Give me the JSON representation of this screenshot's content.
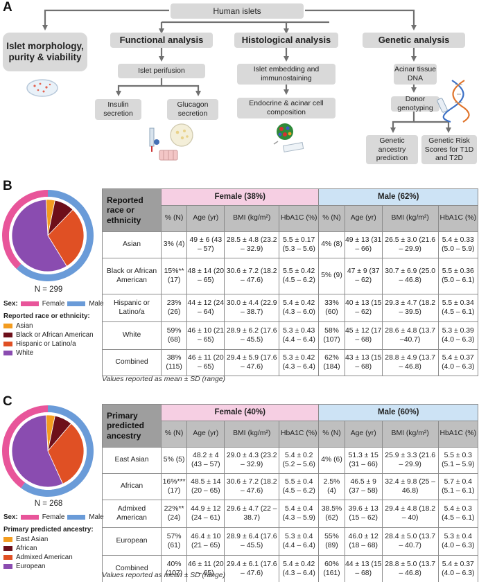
{
  "panelA": {
    "letter": "A",
    "root": "Human islets",
    "morphology": "Islet morphology, purity & viability",
    "functional": {
      "title": "Functional analysis",
      "step1": "Islet perifusion",
      "leaf1": "Insulin secretion",
      "leaf2": "Glucagon secretion"
    },
    "histological": {
      "title": "Histological analysis",
      "step1": "Islet embedding and immunostaining",
      "step2": "Endocrine & acinar cell composition"
    },
    "genetic": {
      "title": "Genetic analysis",
      "step1": "Acinar tissue DNA",
      "step2": "Donor genotyping",
      "leaf1": "Genetic ancestry prediction",
      "leaf2": "Genetic Risk Scores for T1D and T2D"
    }
  },
  "panelB": {
    "letter": "B",
    "n_label": "N = 299",
    "sex_title": "Sex:",
    "sex_female": "Female",
    "sex_male": "Male",
    "legend_title": "Reported race or ethnicity:",
    "legend_items": [
      "Asian",
      "Black or African American",
      "Hispanic or Latino/a",
      "White"
    ],
    "corner": "Reported race or ethnicity",
    "female_header": "Female (38%)",
    "male_header": "Male (62%)",
    "subheaders": [
      "% (N)",
      "Age (yr)",
      "BMI (kg/m²)",
      "HbA1C (%)"
    ],
    "rows": [
      {
        "label": "Asian",
        "f": [
          "3% (4)",
          "49 ± 6 (43 – 57)",
          "28.5 ± 4.8 (23.2 – 32.9)",
          "5.5 ± 0.17 (5.3 – 5.6)"
        ],
        "m": [
          "4% (8)",
          "49 ± 13 (31 – 66)",
          "26.5 ± 3.0 (21.6 – 29.9)",
          "5.4 ± 0.33 (5.0 – 5.9)"
        ]
      },
      {
        "label": "Black or African American",
        "f": [
          "15%** (17)",
          "48 ± 14 (20 – 65)",
          "30.6 ± 7.2 (18.2 – 47.6)",
          "5.5 ± 0.42 (4.5 – 6.2)"
        ],
        "m": [
          "5% (9)",
          "47 ± 9 (37 – 62)",
          "30.7 ± 6.9 (25.0 – 46.8)",
          "5.5 ± 0.36 (5.0 – 6.1)"
        ]
      },
      {
        "label": "Hispanic or Latino/a",
        "f": [
          "23% (26)",
          "44 ± 12 (24 – 64)",
          "30.0 ± 4.4 (22.9 – 38.7)",
          "5.4 ± 0.42 (4.3 – 6.0)"
        ],
        "m": [
          "33% (60)",
          "40 ± 13 (15 – 62)",
          "29.3 ± 4.7 (18.2 – 39.5)",
          "5.5 ± 0.34 (4.5 – 6.1)"
        ]
      },
      {
        "label": "White",
        "f": [
          "59% (68)",
          "46 ± 10 (21 – 65)",
          "28.9 ± 6.2 (17.6 – 45.5)",
          "5.3 ± 0.43 (4.4 – 6.4)"
        ],
        "m": [
          "58% (107)",
          "45 ± 12 (17 – 68)",
          "28.6 ± 4.8 (13.7 –40.7)",
          "5.3 ± 0.39 (4.0 – 6.3)"
        ]
      },
      {
        "label": "Combined",
        "f": [
          "38% (115)",
          "46 ± 11 (20 – 65)",
          "29.4 ± 5.9 (17.6 – 47.6)",
          "5.3 ± 0.42 (4.3 – 6.4)"
        ],
        "m": [
          "62% (184)",
          "43 ± 13 (15 – 68)",
          "28.8 ± 4.9 (13.7 – 46.8)",
          "5.4 ± 0.37 (4.0 – 6.3)"
        ]
      }
    ],
    "note": "Values reported as mean ± SD (range)"
  },
  "panelC": {
    "letter": "C",
    "n_label": "N = 268",
    "sex_title": "Sex:",
    "sex_female": "Female",
    "sex_male": "Male",
    "legend_title": "Primary predicted ancestry:",
    "legend_items": [
      "East Asian",
      "African",
      "Admixed American",
      "European"
    ],
    "corner": "Primary predicted ancestry",
    "female_header": "Female (40%)",
    "male_header": "Male (60%)",
    "subheaders": [
      "% (N)",
      "Age (yr)",
      "BMI (kg/m²)",
      "HbA1C (%)"
    ],
    "rows": [
      {
        "label": "East Asian",
        "f": [
          "5% (5)",
          "48.2 ± 4 (43 – 57)",
          "29.0 ± 4.3 (23.2 – 32.9)",
          "5.4 ± 0.2 (5.2 – 5.6)"
        ],
        "m": [
          "4% (6)",
          "51.3 ± 15 (31 – 66)",
          "25.9 ± 3.3 (21.6 – 29.9)",
          "5.5 ± 0.3 (5.1 – 5.9)"
        ]
      },
      {
        "label": "African",
        "f": [
          "16%*** (17)",
          "48.5 ± 14 (20 – 65)",
          "30.6 ± 7.2 (18.2 – 47.6)",
          "5.5 ± 0.4 (4.5 – 6.2)"
        ],
        "m": [
          "2.5% (4)",
          "46.5 ± 9 (37 – 58)",
          "32.4 ± 9.8 (25 – 46.8)",
          "5.7 ± 0.4 (5.1 – 6.1)"
        ]
      },
      {
        "label": "Admixed American",
        "f": [
          "22%** (24)",
          "44.9 ± 12 (24 – 61)",
          "29.6 ± 4.7 (22 – 38.7)",
          "5.4 ± 0.4 (4.3 – 5.9)"
        ],
        "m": [
          "38.5% (62)",
          "39.6 ± 13 (15 – 62)",
          "29.4 ± 4.8 (18.2 – 40)",
          "5.4 ± 0.3 (4.5 – 6.1)"
        ]
      },
      {
        "label": "European",
        "f": [
          "57% (61)",
          "46.4 ± 10 (21 – 65)",
          "28.9 ± 6.4 (17.6 – 45.5)",
          "5.3 ± 0.4 (4.4 – 6.4)"
        ],
        "m": [
          "55% (89)",
          "46.0 ± 12 (18 – 68)",
          "28.4 ± 5.0 (13.7 – 40.7)",
          "5.3 ± 0.4 (4.0 – 6.3)"
        ]
      },
      {
        "label": "Combined",
        "f": [
          "40% (107)",
          "46 ± 11 (20 – 65)",
          "29.4 ± 6.1 (17.6 – 47.6)",
          "5.4 ± 0.42 (4.3 – 6.4)"
        ],
        "m": [
          "60% (161)",
          "44 ± 13 (15 – 68)",
          "28.8 ± 5.0 (13.7 – 46.8)",
          "5.4 ± 0.37 (4.0 – 6.3)"
        ]
      }
    ],
    "note": "Values reported as mean ± SD (range)"
  },
  "colors": {
    "female": "#e8559a",
    "male": "#6a9bd8",
    "asian": "#f39c1f",
    "african": "#6d0f1a",
    "hispanic": "#e05024",
    "white": "#8a4cb0"
  },
  "chart_data": [
    {
      "type": "pie",
      "outer_ring": {
        "categories": [
          "Female",
          "Male"
        ],
        "values": [
          38,
          62
        ]
      },
      "inner": {
        "categories": [
          "Asian",
          "Black or African American",
          "Hispanic or Latino/a",
          "White"
        ],
        "values": [
          4,
          9,
          29,
          58
        ]
      }
    },
    {
      "type": "pie",
      "outer_ring": {
        "categories": [
          "Female",
          "Male"
        ],
        "values": [
          40,
          60
        ]
      },
      "inner": {
        "categories": [
          "East Asian",
          "African",
          "Admixed American",
          "European"
        ],
        "values": [
          4,
          8,
          32,
          56
        ]
      }
    }
  ]
}
